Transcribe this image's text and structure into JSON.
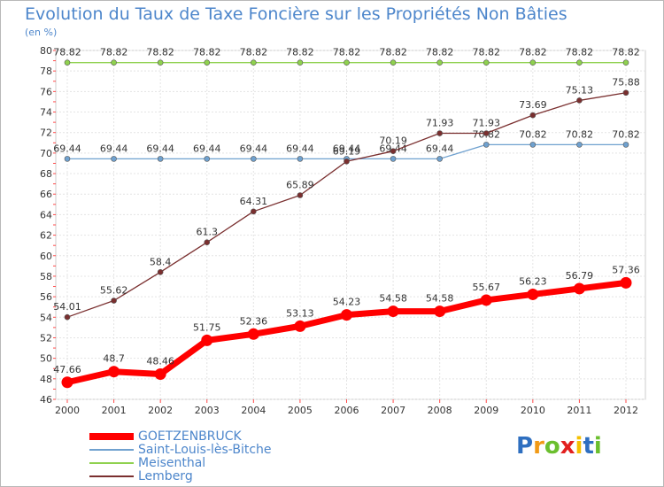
{
  "chart_data": {
    "type": "line",
    "title": "Evolution du Taux de Taxe Foncière sur les Propriétés Non Bâties",
    "ylabel": "(en %)",
    "xlabel": "",
    "categories": [
      "2000",
      "2001",
      "2002",
      "2003",
      "2004",
      "2005",
      "2006",
      "2007",
      "2008",
      "2009",
      "2010",
      "2011",
      "2012"
    ],
    "ylim": [
      46,
      80
    ],
    "yticks": [
      46,
      48,
      50,
      52,
      54,
      56,
      58,
      60,
      62,
      64,
      66,
      68,
      70,
      72,
      74,
      76,
      78,
      80
    ],
    "grid": true,
    "legend_position": "bottom-left",
    "series": [
      {
        "name": "GOETZENBRUCK",
        "color": "#ff0000",
        "values": [
          47.66,
          48.7,
          48.46,
          51.75,
          52.36,
          53.13,
          54.23,
          54.58,
          54.58,
          55.67,
          56.23,
          56.79,
          57.36
        ],
        "labels": [
          "47.66",
          "48.7",
          "48.46",
          "51.75",
          "52.36",
          "53.13",
          "54.23",
          "54.58",
          "54.58",
          "55.67",
          "56.23",
          "56.79",
          "57.36"
        ]
      },
      {
        "name": "Saint-Louis-lès-Bitche",
        "color": "#6fa1cf",
        "values": [
          69.44,
          69.44,
          69.44,
          69.44,
          69.44,
          69.44,
          69.44,
          69.44,
          69.44,
          70.82,
          70.82,
          70.82,
          70.82
        ],
        "labels": [
          "69.44",
          "69.44",
          "69.44",
          "69.44",
          "69.44",
          "69.44",
          "69.44",
          "69.44",
          "69.44",
          "70.82",
          "70.82",
          "70.82",
          "70.82"
        ]
      },
      {
        "name": "Meisenthal",
        "color": "#8fd14f",
        "values": [
          78.82,
          78.82,
          78.82,
          78.82,
          78.82,
          78.82,
          78.82,
          78.82,
          78.82,
          78.82,
          78.82,
          78.82,
          78.82
        ],
        "labels": [
          "78.82",
          "78.82",
          "78.82",
          "78.82",
          "78.82",
          "78.82",
          "78.82",
          "78.82",
          "78.82",
          "78.82",
          "78.82",
          "78.82",
          "78.82"
        ]
      },
      {
        "name": "Lemberg",
        "color": "#7a2f2f",
        "values": [
          54.01,
          55.62,
          58.4,
          61.3,
          64.31,
          65.89,
          69.19,
          70.19,
          71.93,
          71.93,
          73.69,
          75.13,
          75.88
        ],
        "labels": [
          "54.01",
          "55.62",
          "58.4",
          "61.3",
          "64.31",
          "65.89",
          "69.19",
          "70.19",
          "71.93",
          "71.93",
          "73.69",
          "75.13",
          "75.88"
        ]
      }
    ]
  },
  "brand": {
    "letters": [
      "P",
      "r",
      "o",
      "x",
      "i",
      "t",
      "i"
    ],
    "colors": [
      "#2e6fc0",
      "#f19a16",
      "#6bbf2e",
      "#e2201f",
      "#f5c000",
      "#2e6fc0",
      "#6bbf2e"
    ]
  }
}
